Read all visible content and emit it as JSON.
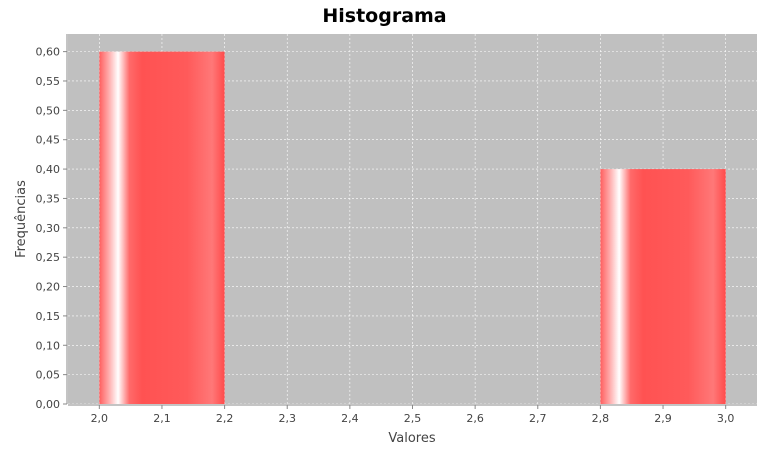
{
  "chart_data": {
    "type": "bar",
    "title": "Histograma",
    "xlabel": "Valores",
    "ylabel": "Frequências",
    "xlim": [
      1.95,
      3.05
    ],
    "ylim": [
      0,
      0.63
    ],
    "x_ticks": [
      "2,0",
      "2,1",
      "2,2",
      "2,3",
      "2,4",
      "2,5",
      "2,6",
      "2,7",
      "2,8",
      "2,9",
      "3,0"
    ],
    "y_ticks": [
      "0,00",
      "0,05",
      "0,10",
      "0,15",
      "0,20",
      "0,25",
      "0,30",
      "0,35",
      "0,40",
      "0,45",
      "0,50",
      "0,55",
      "0,60"
    ],
    "bins": [
      {
        "start": 2.0,
        "end": 2.2,
        "value": 0.6
      },
      {
        "start": 2.8,
        "end": 3.0,
        "value": 0.4
      }
    ],
    "grid": true,
    "legend": "none",
    "colors": {
      "bar": "#ff5555",
      "plot_background": "#c0c0c0",
      "gridline": "#ffffff",
      "axis": "#888888"
    }
  }
}
